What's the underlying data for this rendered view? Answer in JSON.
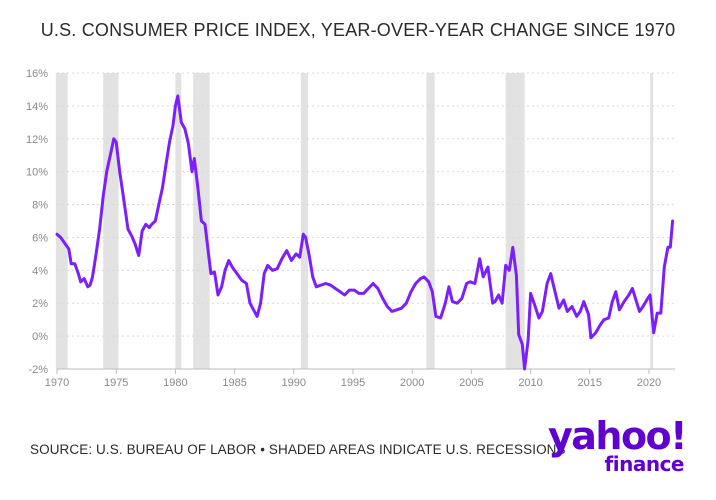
{
  "title": "U.S. CONSUMER PRICE INDEX, YEAR-OVER-YEAR CHANGE SINCE 1970",
  "source": "SOURCE: U.S. BUREAU OF LABOR • SHADED AREAS INDICATE U.S. RECESSIONS",
  "logo": {
    "line1": "yahoo!",
    "line2": "finance"
  },
  "colors": {
    "line": "#7c1fff",
    "recession": "#e2e2e2",
    "grid": "#d9d9d9",
    "text": "#2b2b2b",
    "brand": "#6001d2"
  },
  "chart_data": {
    "type": "line",
    "title": "U.S. CONSUMER PRICE INDEX, YEAR-OVER-YEAR CHANGE SINCE 1970",
    "xlabel": "",
    "ylabel": "",
    "xlim": [
      1970,
      2022.2
    ],
    "ylim": [
      -2,
      16
    ],
    "x_ticks": [
      1970,
      1975,
      1980,
      1985,
      1990,
      1995,
      2000,
      2005,
      2010,
      2015,
      2020
    ],
    "y_ticks": [
      -2,
      0,
      2,
      4,
      6,
      8,
      10,
      12,
      14,
      16
    ],
    "y_tick_labels": [
      "-2%",
      "0%",
      "2%",
      "4%",
      "6%",
      "8%",
      "10%",
      "12%",
      "14%",
      "16%"
    ],
    "grid": "horizontal-dashed",
    "recessions": [
      [
        1969.9,
        1970.9
      ],
      [
        1973.9,
        1975.2
      ],
      [
        1980.0,
        1980.5
      ],
      [
        1981.5,
        1982.9
      ],
      [
        1990.6,
        1991.2
      ],
      [
        2001.2,
        2001.9
      ],
      [
        2007.9,
        2009.5
      ],
      [
        2020.1,
        2020.35
      ]
    ],
    "series": [
      {
        "values": [
          [
            1970.0,
            6.2
          ],
          [
            1970.3,
            6.0
          ],
          [
            1970.7,
            5.6
          ],
          [
            1971.0,
            5.3
          ],
          [
            1971.2,
            4.4
          ],
          [
            1971.5,
            4.4
          ],
          [
            1971.8,
            3.8
          ],
          [
            1972.0,
            3.3
          ],
          [
            1972.3,
            3.5
          ],
          [
            1972.6,
            3.0
          ],
          [
            1972.8,
            3.1
          ],
          [
            1973.0,
            3.6
          ],
          [
            1973.3,
            5.0
          ],
          [
            1973.6,
            6.5
          ],
          [
            1973.9,
            8.5
          ],
          [
            1974.2,
            10.0
          ],
          [
            1974.5,
            11.0
          ],
          [
            1974.8,
            12.0
          ],
          [
            1975.0,
            11.8
          ],
          [
            1975.3,
            10.0
          ],
          [
            1975.6,
            8.5
          ],
          [
            1976.0,
            6.5
          ],
          [
            1976.3,
            6.1
          ],
          [
            1976.6,
            5.6
          ],
          [
            1976.9,
            4.9
          ],
          [
            1977.2,
            6.4
          ],
          [
            1977.5,
            6.8
          ],
          [
            1977.8,
            6.6
          ],
          [
            1978.0,
            6.8
          ],
          [
            1978.3,
            7.0
          ],
          [
            1978.6,
            8.0
          ],
          [
            1978.9,
            9.0
          ],
          [
            1979.2,
            10.4
          ],
          [
            1979.5,
            11.8
          ],
          [
            1979.8,
            12.8
          ],
          [
            1980.0,
            14.0
          ],
          [
            1980.2,
            14.6
          ],
          [
            1980.5,
            13.0
          ],
          [
            1980.8,
            12.6
          ],
          [
            1981.1,
            11.7
          ],
          [
            1981.4,
            10.0
          ],
          [
            1981.6,
            10.8
          ],
          [
            1981.9,
            9.0
          ],
          [
            1982.2,
            7.0
          ],
          [
            1982.5,
            6.8
          ],
          [
            1982.8,
            5.0
          ],
          [
            1983.0,
            3.8
          ],
          [
            1983.3,
            3.9
          ],
          [
            1983.6,
            2.5
          ],
          [
            1983.9,
            3.0
          ],
          [
            1984.2,
            4.0
          ],
          [
            1984.5,
            4.6
          ],
          [
            1984.8,
            4.2
          ],
          [
            1985.2,
            3.8
          ],
          [
            1985.6,
            3.4
          ],
          [
            1986.0,
            3.2
          ],
          [
            1986.3,
            2.0
          ],
          [
            1986.6,
            1.6
          ],
          [
            1986.9,
            1.2
          ],
          [
            1987.2,
            2.0
          ],
          [
            1987.5,
            3.8
          ],
          [
            1987.8,
            4.3
          ],
          [
            1988.2,
            4.0
          ],
          [
            1988.6,
            4.1
          ],
          [
            1989.0,
            4.7
          ],
          [
            1989.4,
            5.2
          ],
          [
            1989.8,
            4.6
          ],
          [
            1990.2,
            5.0
          ],
          [
            1990.5,
            4.8
          ],
          [
            1990.8,
            6.2
          ],
          [
            1991.0,
            6.0
          ],
          [
            1991.3,
            4.9
          ],
          [
            1991.6,
            3.6
          ],
          [
            1991.9,
            3.0
          ],
          [
            1992.3,
            3.1
          ],
          [
            1992.7,
            3.2
          ],
          [
            1993.1,
            3.1
          ],
          [
            1993.5,
            2.9
          ],
          [
            1993.9,
            2.7
          ],
          [
            1994.3,
            2.5
          ],
          [
            1994.7,
            2.8
          ],
          [
            1995.1,
            2.8
          ],
          [
            1995.5,
            2.6
          ],
          [
            1995.9,
            2.6
          ],
          [
            1996.3,
            2.9
          ],
          [
            1996.7,
            3.2
          ],
          [
            1997.1,
            2.9
          ],
          [
            1997.5,
            2.3
          ],
          [
            1997.9,
            1.8
          ],
          [
            1998.3,
            1.5
          ],
          [
            1998.7,
            1.6
          ],
          [
            1999.1,
            1.7
          ],
          [
            1999.5,
            2.0
          ],
          [
            1999.9,
            2.7
          ],
          [
            2000.3,
            3.2
          ],
          [
            2000.7,
            3.5
          ],
          [
            2001.0,
            3.6
          ],
          [
            2001.4,
            3.3
          ],
          [
            2001.7,
            2.7
          ],
          [
            2002.0,
            1.2
          ],
          [
            2002.4,
            1.1
          ],
          [
            2002.8,
            2.0
          ],
          [
            2003.1,
            3.0
          ],
          [
            2003.4,
            2.1
          ],
          [
            2003.8,
            2.0
          ],
          [
            2004.2,
            2.3
          ],
          [
            2004.6,
            3.2
          ],
          [
            2004.9,
            3.3
          ],
          [
            2005.3,
            3.2
          ],
          [
            2005.7,
            4.7
          ],
          [
            2006.0,
            3.6
          ],
          [
            2006.4,
            4.2
          ],
          [
            2006.8,
            2.0
          ],
          [
            2007.0,
            2.1
          ],
          [
            2007.3,
            2.5
          ],
          [
            2007.6,
            2.0
          ],
          [
            2007.9,
            4.3
          ],
          [
            2008.2,
            4.0
          ],
          [
            2008.5,
            5.4
          ],
          [
            2008.8,
            3.7
          ],
          [
            2009.0,
            0.1
          ],
          [
            2009.3,
            -0.5
          ],
          [
            2009.5,
            -2.0
          ],
          [
            2009.8,
            -0.2
          ],
          [
            2010.0,
            2.6
          ],
          [
            2010.3,
            2.0
          ],
          [
            2010.7,
            1.1
          ],
          [
            2011.0,
            1.5
          ],
          [
            2011.4,
            3.2
          ],
          [
            2011.7,
            3.8
          ],
          [
            2012.0,
            2.9
          ],
          [
            2012.4,
            1.7
          ],
          [
            2012.8,
            2.2
          ],
          [
            2013.1,
            1.5
          ],
          [
            2013.5,
            1.8
          ],
          [
            2013.9,
            1.2
          ],
          [
            2014.2,
            1.5
          ],
          [
            2014.5,
            2.1
          ],
          [
            2014.9,
            1.3
          ],
          [
            2015.1,
            -0.1
          ],
          [
            2015.5,
            0.2
          ],
          [
            2015.9,
            0.7
          ],
          [
            2016.2,
            1.0
          ],
          [
            2016.6,
            1.1
          ],
          [
            2016.9,
            2.1
          ],
          [
            2017.2,
            2.7
          ],
          [
            2017.5,
            1.6
          ],
          [
            2017.9,
            2.1
          ],
          [
            2018.3,
            2.5
          ],
          [
            2018.6,
            2.9
          ],
          [
            2018.9,
            2.2
          ],
          [
            2019.2,
            1.5
          ],
          [
            2019.5,
            1.8
          ],
          [
            2019.9,
            2.3
          ],
          [
            2020.1,
            2.5
          ],
          [
            2020.4,
            0.2
          ],
          [
            2020.7,
            1.4
          ],
          [
            2021.0,
            1.4
          ],
          [
            2021.3,
            4.2
          ],
          [
            2021.6,
            5.4
          ],
          [
            2021.8,
            5.4
          ],
          [
            2022.0,
            7.0
          ]
        ]
      }
    ]
  }
}
